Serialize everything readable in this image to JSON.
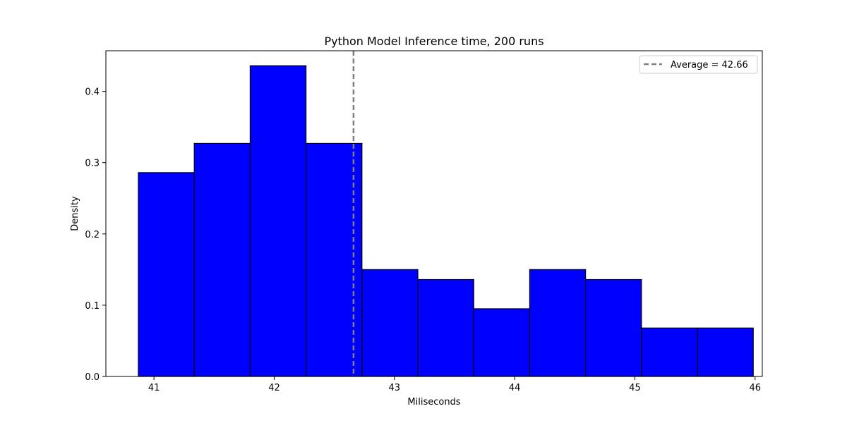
{
  "chart_data": {
    "type": "bar",
    "title": "Python Model Inference time, 200 runs",
    "xlabel": "Miliseconds",
    "ylabel": "Density",
    "xlim": [
      40.6,
      46.06
    ],
    "ylim": [
      0,
      0.457
    ],
    "xticks": [
      41,
      42,
      43,
      44,
      45,
      46
    ],
    "yticks": [
      0.0,
      0.1,
      0.2,
      0.3,
      0.4
    ],
    "ytick_labels": [
      "0.0",
      "0.1",
      "0.2",
      "0.3",
      "0.4"
    ],
    "bin_edges": [
      40.87,
      41.335,
      41.8,
      42.265,
      42.73,
      43.195,
      43.66,
      44.125,
      44.59,
      45.055,
      45.52,
      45.985
    ],
    "values": [
      0.286,
      0.327,
      0.436,
      0.327,
      0.15,
      0.136,
      0.095,
      0.15,
      0.136,
      0.068,
      0.068
    ],
    "bar_color": "#0000ff",
    "edge_color": "#000000",
    "average": 42.66,
    "average_line_color": "#808080",
    "legend": {
      "position": "upper-right",
      "label": "Average = 42.66"
    },
    "grid": false
  }
}
